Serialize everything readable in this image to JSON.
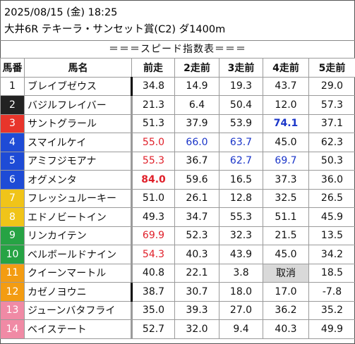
{
  "header": {
    "line1": "2025/08/15 (金) 18:25",
    "line2": "大井6R テキーラ・サンセット賞(C2) ダ1400m"
  },
  "caption": "＝＝＝スピード指数表＝＝＝",
  "columns": [
    "馬番",
    "馬名",
    "前走",
    "2走前",
    "3走前",
    "4走前",
    "5走前"
  ],
  "rows": [
    {
      "num": "1",
      "name": "ブレイブゼウス",
      "v": [
        "34.8",
        "14.9",
        "19.3",
        "43.7",
        "29.0"
      ]
    },
    {
      "num": "2",
      "name": "バジルフレイバー",
      "v": [
        "21.3",
        "6.4",
        "50.4",
        "12.0",
        "57.3"
      ]
    },
    {
      "num": "3",
      "name": "サントグラール",
      "v": [
        "51.3",
        "37.9",
        "53.9",
        "74.1",
        "37.1"
      ]
    },
    {
      "num": "4",
      "name": "スマイルケイ",
      "v": [
        "55.0",
        "66.0",
        "63.7",
        "45.0",
        "62.3"
      ]
    },
    {
      "num": "5",
      "name": "アミフジモアナ",
      "v": [
        "55.3",
        "36.7",
        "62.7",
        "69.7",
        "50.3"
      ]
    },
    {
      "num": "6",
      "name": "オグメンタ",
      "v": [
        "84.0",
        "59.6",
        "16.5",
        "37.3",
        "36.0"
      ]
    },
    {
      "num": "7",
      "name": "フレッシュルーキー",
      "v": [
        "51.0",
        "26.1",
        "12.8",
        "32.5",
        "26.5"
      ]
    },
    {
      "num": "8",
      "name": "エドノビートイン",
      "v": [
        "49.3",
        "34.7",
        "55.3",
        "51.1",
        "45.9"
      ]
    },
    {
      "num": "9",
      "name": "リンカイテン",
      "v": [
        "69.9",
        "52.3",
        "32.3",
        "21.5",
        "13.5"
      ]
    },
    {
      "num": "10",
      "name": "ベルボールドナイン",
      "v": [
        "54.3",
        "40.3",
        "43.9",
        "45.0",
        "34.2"
      ]
    },
    {
      "num": "11",
      "name": "クイーンマートル",
      "v": [
        "40.8",
        "22.1",
        "3.8",
        "取消",
        "18.5"
      ]
    },
    {
      "num": "12",
      "name": "カゼノヨウニ",
      "v": [
        "38.7",
        "30.7",
        "18.0",
        "17.0",
        "-7.8"
      ]
    },
    {
      "num": "13",
      "name": "ジューンバタフライ",
      "v": [
        "35.0",
        "39.3",
        "27.0",
        "36.2",
        "35.2"
      ]
    },
    {
      "num": "14",
      "name": "ベイステート",
      "v": [
        "52.7",
        "32.0",
        "9.4",
        "40.3",
        "49.9"
      ]
    }
  ],
  "gate_colors": [
    "#ffffff",
    "#222222",
    "#e8352b",
    "#1e4bd6",
    "#1e4bd6",
    "#1e4bd6",
    "#f0c419",
    "#f0c419",
    "#26a344",
    "#26a344",
    "#f39c12",
    "#f39c12",
    "#f08aa5",
    "#f08aa5"
  ],
  "gate_text_colors": [
    "#111111",
    "#ffffff",
    "#ffffff",
    "#ffffff",
    "#ffffff",
    "#ffffff",
    "#ffffff",
    "#ffffff",
    "#ffffff",
    "#ffffff",
    "#ffffff",
    "#ffffff",
    "#ffffff",
    "#ffffff"
  ],
  "cell_styles": {
    "2_3": "blue bold",
    "3_0": "red",
    "3_1": "blue",
    "3_2": "blue",
    "4_0": "red",
    "4_2": "blue",
    "4_3": "blue",
    "5_0": "red bold",
    "8_0": "red",
    "9_0": "red",
    "10_3": "cancel"
  },
  "first_col_marks": [
    0,
    11
  ]
}
